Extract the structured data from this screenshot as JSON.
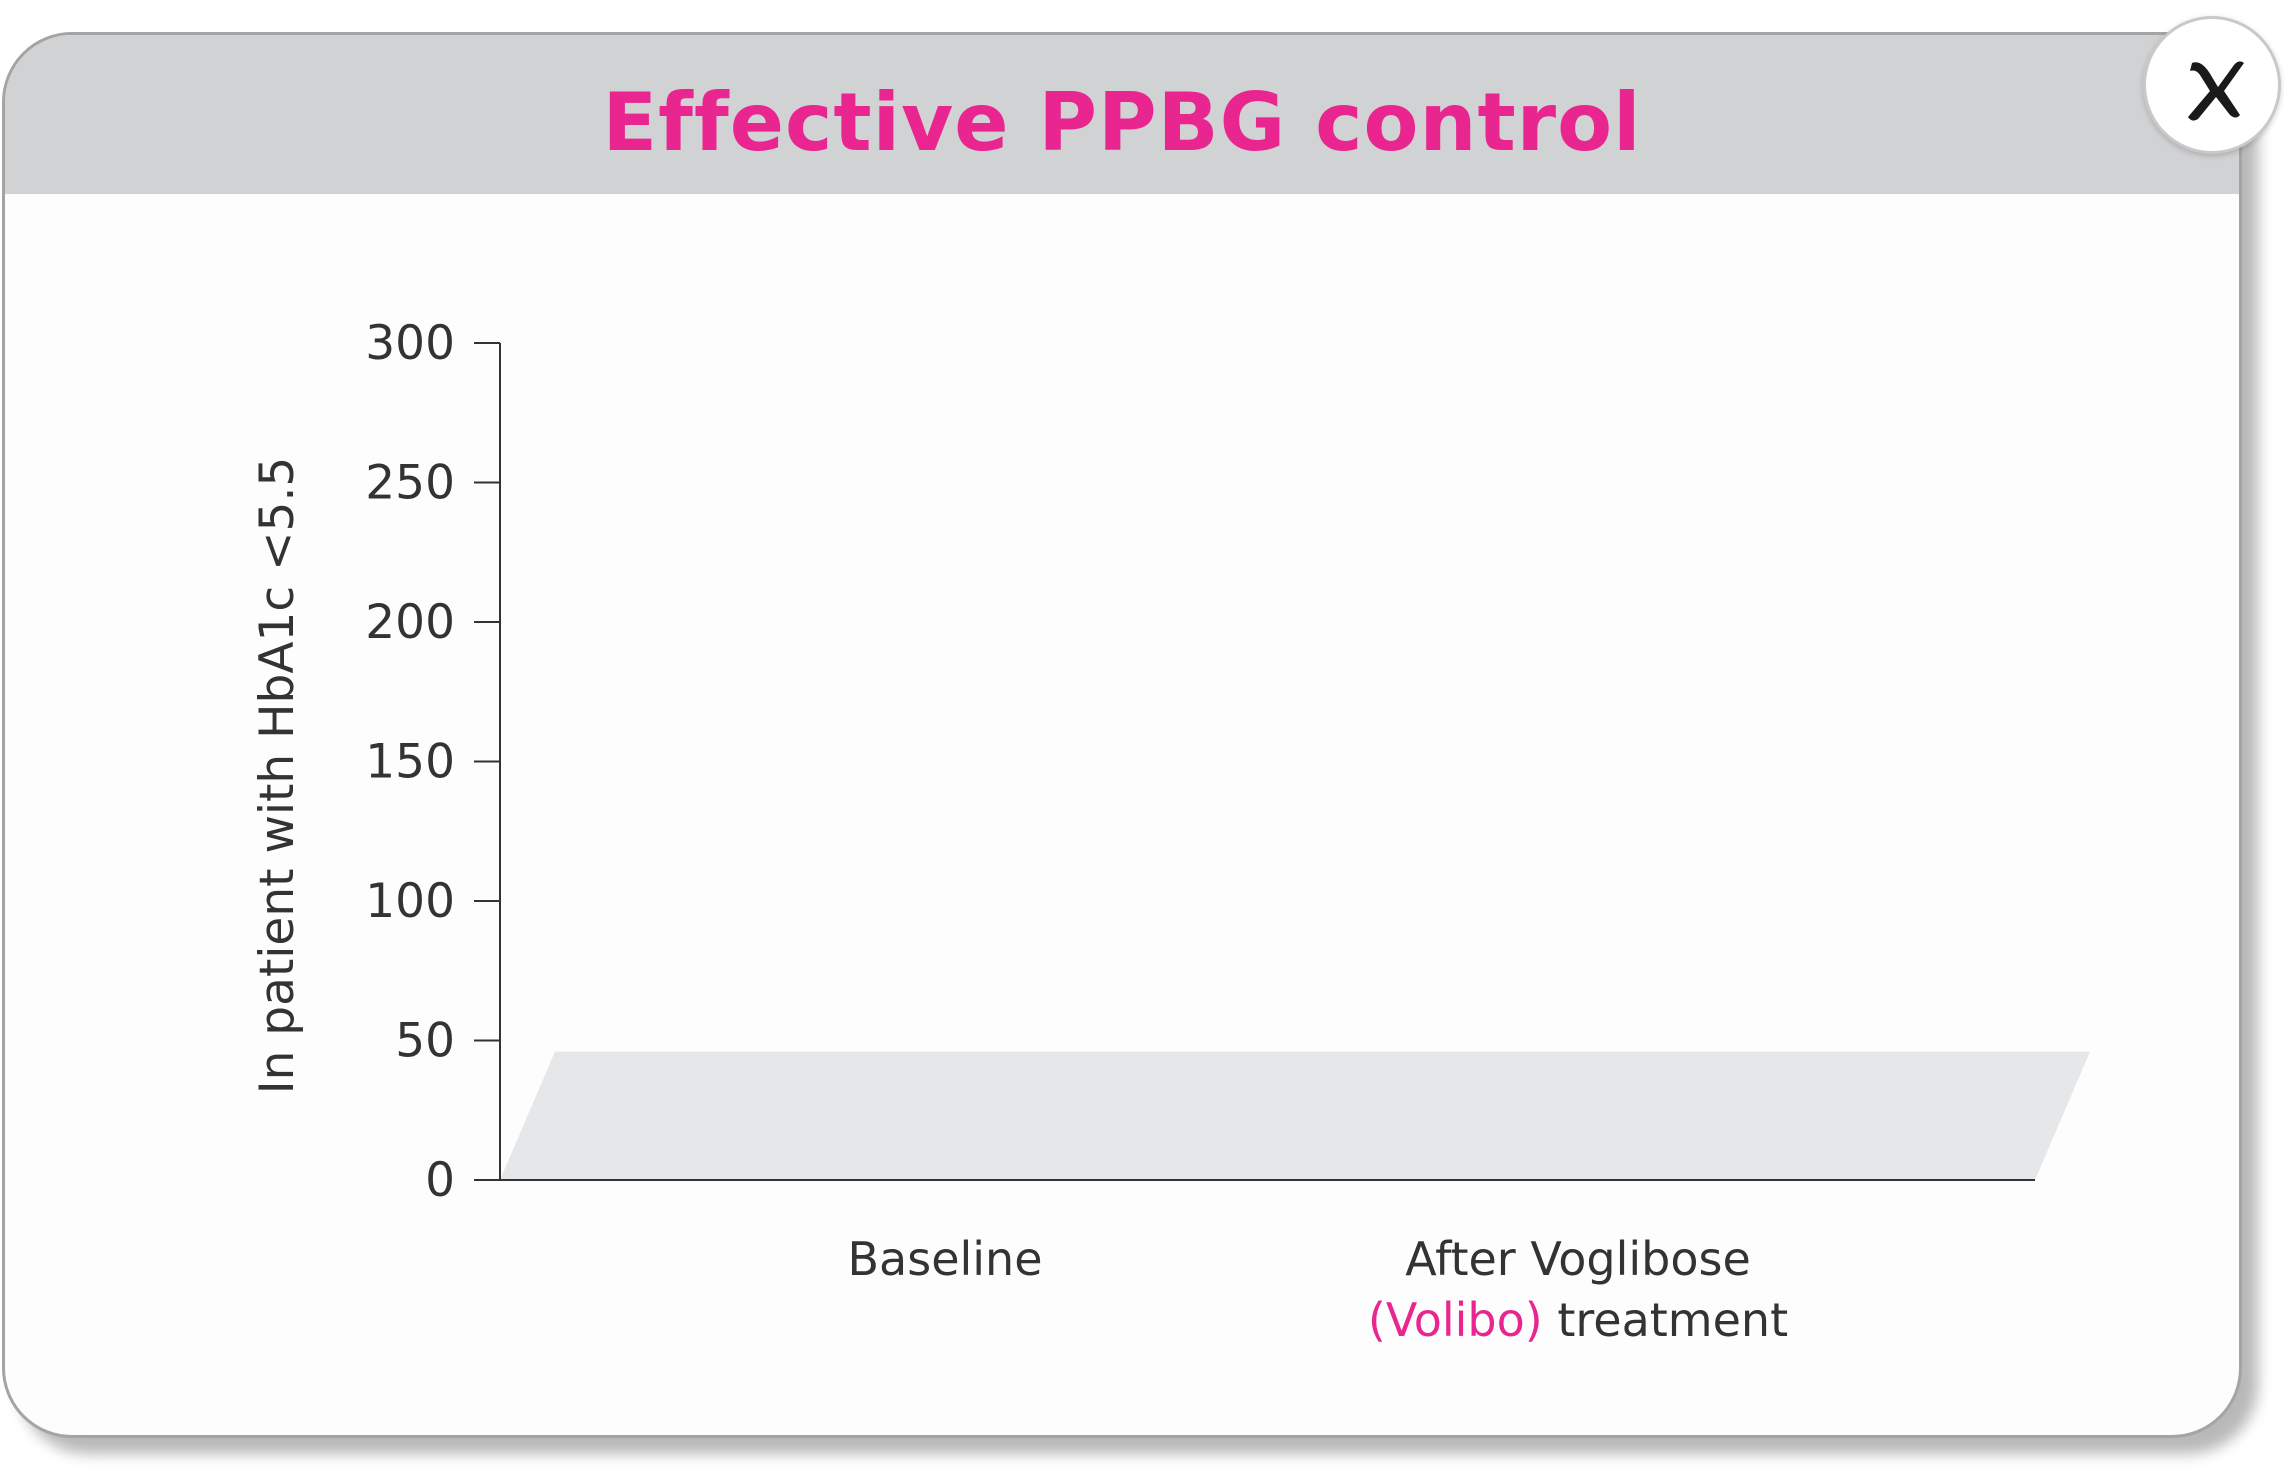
{
  "title": "Effective PPBG control",
  "close_button": {
    "icon": "close-icon",
    "glyph": "✕"
  },
  "colors": {
    "accent": "#e9268f",
    "header": "#d1d2d4",
    "floor": "#e6e7e9",
    "axis": "#333333"
  },
  "chart_data": {
    "type": "bar",
    "title": "Effective PPBG control",
    "ylabel": "In patient with HbA1c <5.5",
    "xlabel": "",
    "ylim": [
      0,
      300
    ],
    "yticks": [
      0,
      50,
      100,
      150,
      200,
      250,
      300
    ],
    "grid": false,
    "categories": [
      "Baseline",
      "After Voglibose (Volibo) treatment"
    ],
    "category_label_parts": [
      {
        "lines": [
          [
            {
              "text": "Baseline",
              "accent": false
            }
          ]
        ]
      },
      {
        "lines": [
          [
            {
              "text": "After Voglibose",
              "accent": false
            }
          ],
          [
            {
              "text": "(Volibo)",
              "accent": true
            },
            {
              "text": " treatment",
              "accent": false
            }
          ]
        ]
      }
    ],
    "values": [
      null,
      null
    ],
    "floor_value": 46
  }
}
